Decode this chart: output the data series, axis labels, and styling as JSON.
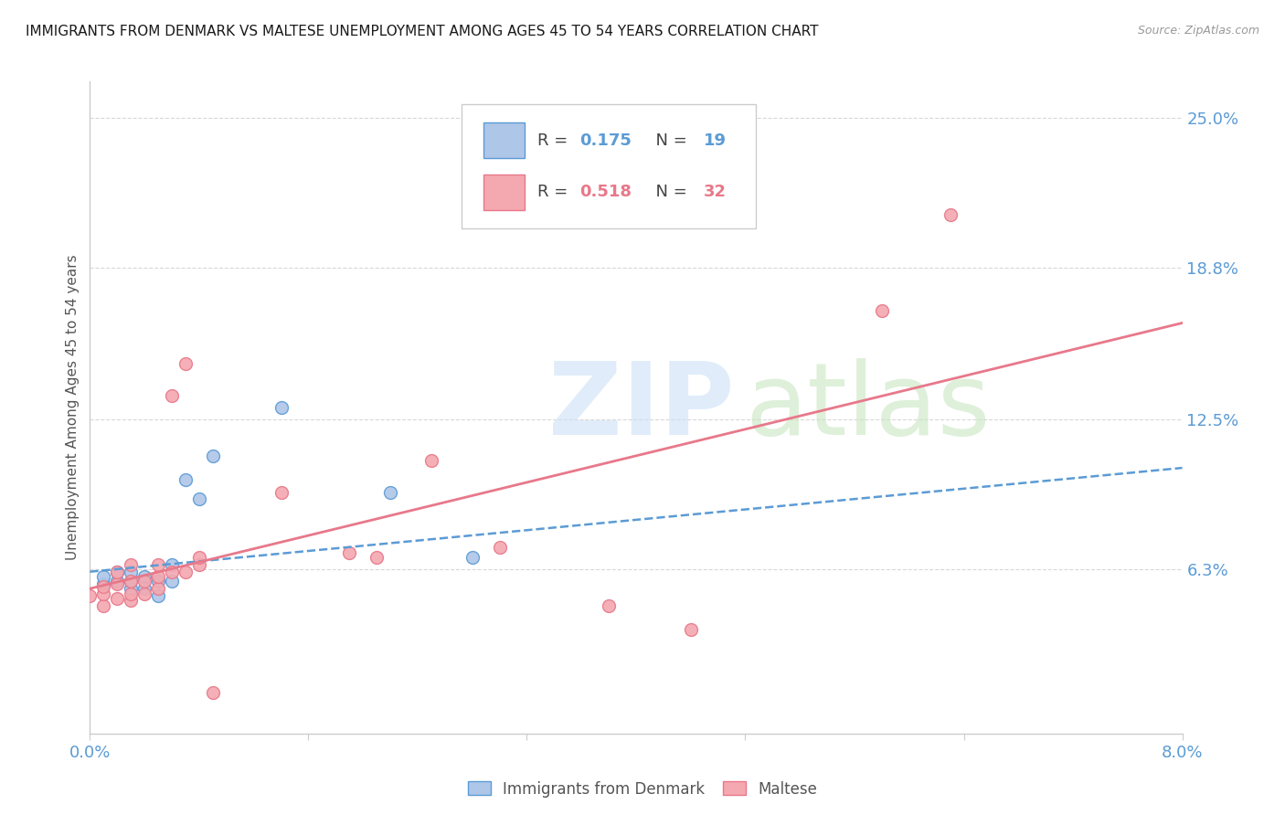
{
  "title": "IMMIGRANTS FROM DENMARK VS MALTESE UNEMPLOYMENT AMONG AGES 45 TO 54 YEARS CORRELATION CHART",
  "source": "Source: ZipAtlas.com",
  "ylabel": "Unemployment Among Ages 45 to 54 years",
  "xlim": [
    0.0,
    0.08
  ],
  "ylim": [
    -0.005,
    0.265
  ],
  "xticks": [
    0.0,
    0.016,
    0.032,
    0.048,
    0.064,
    0.08
  ],
  "xticklabels": [
    "0.0%",
    "",
    "",
    "",
    "",
    "8.0%"
  ],
  "yticks_right": [
    0.063,
    0.125,
    0.188,
    0.25
  ],
  "yticklabels_right": [
    "6.3%",
    "12.5%",
    "18.8%",
    "25.0%"
  ],
  "background_color": "#ffffff",
  "grid_color": "#d8d8d8",
  "denmark_color": "#aec6e8",
  "maltese_color": "#f4a8b0",
  "denmark_edge_color": "#5b9bd5",
  "maltese_edge_color": "#e8788a",
  "denmark_r": 0.175,
  "denmark_n": 19,
  "maltese_r": 0.518,
  "maltese_n": 32,
  "denmark_scatter_x": [
    0.001,
    0.001,
    0.002,
    0.002,
    0.003,
    0.003,
    0.003,
    0.004,
    0.004,
    0.005,
    0.005,
    0.006,
    0.006,
    0.007,
    0.008,
    0.009,
    0.014,
    0.022,
    0.028
  ],
  "denmark_scatter_y": [
    0.057,
    0.06,
    0.058,
    0.062,
    0.055,
    0.058,
    0.062,
    0.06,
    0.055,
    0.052,
    0.058,
    0.058,
    0.065,
    0.1,
    0.092,
    0.11,
    0.13,
    0.095,
    0.068
  ],
  "maltese_scatter_x": [
    0.0,
    0.001,
    0.001,
    0.001,
    0.002,
    0.002,
    0.002,
    0.003,
    0.003,
    0.003,
    0.003,
    0.004,
    0.004,
    0.005,
    0.005,
    0.005,
    0.006,
    0.006,
    0.007,
    0.007,
    0.008,
    0.008,
    0.009,
    0.014,
    0.019,
    0.021,
    0.025,
    0.03,
    0.038,
    0.044,
    0.058,
    0.063
  ],
  "maltese_scatter_y": [
    0.052,
    0.048,
    0.053,
    0.056,
    0.051,
    0.057,
    0.062,
    0.05,
    0.053,
    0.058,
    0.065,
    0.053,
    0.058,
    0.055,
    0.06,
    0.065,
    0.062,
    0.135,
    0.062,
    0.148,
    0.065,
    0.068,
    0.012,
    0.095,
    0.07,
    0.068,
    0.108,
    0.072,
    0.048,
    0.038,
    0.17,
    0.21
  ],
  "denmark_line_x": [
    0.0,
    0.08
  ],
  "denmark_line_y": [
    0.062,
    0.105
  ],
  "maltese_line_x": [
    0.0,
    0.08
  ],
  "maltese_line_y": [
    0.055,
    0.165
  ],
  "title_color": "#1a1a1a",
  "axis_label_color": "#555555",
  "tick_color": "#5b9bd5",
  "legend_denmark_text_color": "#5b9bd5",
  "legend_maltese_text_color": "#e8788a"
}
